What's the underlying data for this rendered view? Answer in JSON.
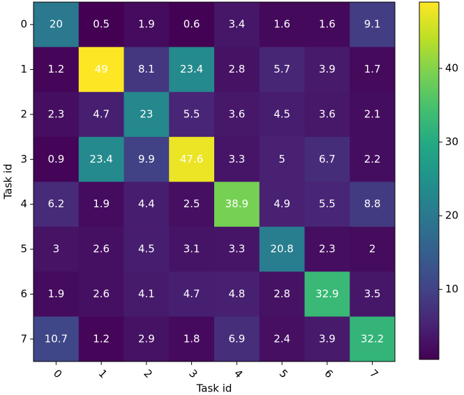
{
  "chart_data": {
    "type": "heatmap",
    "x_label": "Task id",
    "y_label": "Task id",
    "x_categories": [
      "0",
      "1",
      "2",
      "3",
      "4",
      "5",
      "6",
      "7"
    ],
    "y_categories": [
      "0",
      "1",
      "2",
      "3",
      "4",
      "5",
      "6",
      "7"
    ],
    "values": [
      [
        20.0,
        0.5,
        1.9,
        0.6,
        3.4,
        1.6,
        1.6,
        9.1
      ],
      [
        1.2,
        49.0,
        8.1,
        23.4,
        2.8,
        5.7,
        3.9,
        1.7
      ],
      [
        2.3,
        4.7,
        23.0,
        5.5,
        3.6,
        4.5,
        3.6,
        2.1
      ],
      [
        0.9,
        23.4,
        9.9,
        47.6,
        3.3,
        5.0,
        6.7,
        2.2
      ],
      [
        6.2,
        1.9,
        4.4,
        2.5,
        38.9,
        4.9,
        5.5,
        8.8
      ],
      [
        3.0,
        2.6,
        4.5,
        3.1,
        3.3,
        20.8,
        2.3,
        2.0
      ],
      [
        1.9,
        2.6,
        4.1,
        4.7,
        4.8,
        2.8,
        32.9,
        3.5
      ],
      [
        10.7,
        1.2,
        2.9,
        1.8,
        6.9,
        2.4,
        3.9,
        32.2
      ]
    ],
    "colormap": "viridis",
    "clim": [
      0.5,
      49.0
    ],
    "colorbar_ticks": [
      10,
      20,
      30,
      40
    ]
  }
}
